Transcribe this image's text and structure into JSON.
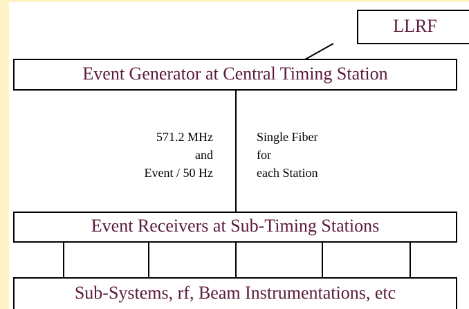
{
  "nodes": [
    {
      "label": "LLRF"
    },
    {
      "label": "Event Generator at Central Timing Station"
    },
    {
      "label": "Event Receivers at Sub-Timing Stations"
    },
    {
      "label": "Sub-Systems, rf, Beam Instrumentations, etc"
    }
  ],
  "link_labels": {
    "left": [
      "571.2 MHz",
      "and",
      "Event / 50 Hz"
    ],
    "right": [
      "Single Fiber",
      "for",
      "each Station"
    ]
  }
}
